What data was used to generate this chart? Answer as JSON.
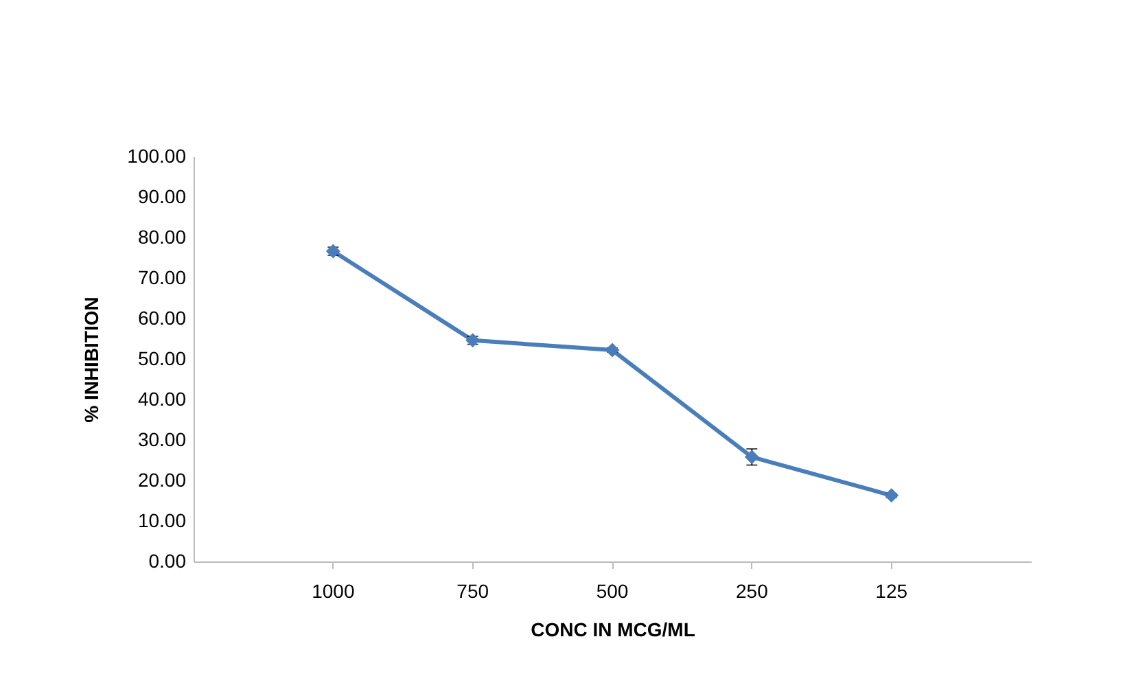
{
  "chart_data": {
    "type": "line",
    "xlabel": "CONC IN MCG/ML",
    "ylabel": "% INHIBITION",
    "categories": [
      "1000",
      "750",
      "500",
      "250",
      "125"
    ],
    "series": [
      {
        "color": "#4a7ebb",
        "values": [
          76.6,
          54.6,
          52.2,
          25.8,
          16.3
        ],
        "errors": [
          1,
          1,
          0.5,
          2,
          0.5
        ]
      }
    ],
    "ylim": [
      0,
      100
    ],
    "yticks": [
      {
        "value": 0,
        "label": "0.00"
      },
      {
        "value": 10,
        "label": "10.00"
      },
      {
        "value": 20,
        "label": "20.00"
      },
      {
        "value": 30,
        "label": "30.00"
      },
      {
        "value": 40,
        "label": "40.00"
      },
      {
        "value": 50,
        "label": "50.00"
      },
      {
        "value": 60,
        "label": "60.00"
      },
      {
        "value": 70,
        "label": "70.00"
      },
      {
        "value": 80,
        "label": "80.00"
      },
      {
        "value": 90,
        "label": "90.00"
      },
      {
        "value": 100,
        "label": "100.00"
      }
    ],
    "grid": false,
    "legend": false,
    "marker": "diamond",
    "line_style": "solid"
  }
}
